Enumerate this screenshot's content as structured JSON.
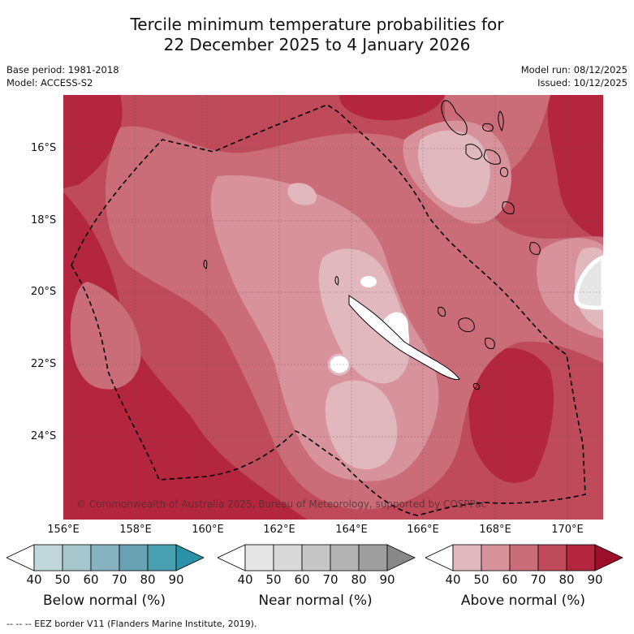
{
  "header": {
    "title_line1": "Tercile minimum temperature probabilities for",
    "title_line2": "22 December 2025 to 4 January 2026",
    "base_period": "Base period: 1981-2018",
    "model": "Model: ACCESS-S2",
    "model_run": "Model run: 08/12/2025",
    "issued": "Issued: 10/12/2025"
  },
  "map": {
    "lat_labels": [
      "16°S",
      "18°S",
      "20°S",
      "22°S",
      "24°S"
    ],
    "lon_labels": [
      "156°E",
      "158°E",
      "160°E",
      "162°E",
      "164°E",
      "166°E",
      "168°E",
      "170°E"
    ],
    "copyright": "© Commonwealth of Australia 2025, Bureau of Meteorology, supported by COSPPac",
    "colors": {
      "above_40": "#e2b8bf",
      "above_50": "#d7929c",
      "above_60": "#ca6d79",
      "above_70": "#be4a5a",
      "above_80": "#b3263e",
      "above_90": "#9c0e2a",
      "land": "#ffffff",
      "eez": "#000000"
    }
  },
  "legend": {
    "below": {
      "title": "Below normal (%)",
      "ticks": [
        "40",
        "50",
        "60",
        "70",
        "80",
        "90"
      ],
      "colors": [
        "#c2d7dc",
        "#a6c6ce",
        "#86b3bf",
        "#66a2b1",
        "#48a0b0",
        "#2a91a6"
      ]
    },
    "near": {
      "title": "Near normal (%)",
      "ticks": [
        "40",
        "50",
        "60",
        "70",
        "80",
        "90"
      ],
      "colors": [
        "#e6e6e6",
        "#d9d9d9",
        "#c6c6c6",
        "#b3b3b3",
        "#9e9e9e",
        "#888888"
      ]
    },
    "above": {
      "title": "Above normal (%)",
      "ticks": [
        "40",
        "50",
        "60",
        "70",
        "80",
        "90"
      ],
      "colors": [
        "#e2b8bf",
        "#d7929c",
        "#ca6d79",
        "#be4a5a",
        "#b3263e",
        "#9c0e2a"
      ]
    }
  },
  "footer": {
    "eez_note": "--  --  -- EEZ border V11 (Flanders Marine Institute, 2019)."
  }
}
